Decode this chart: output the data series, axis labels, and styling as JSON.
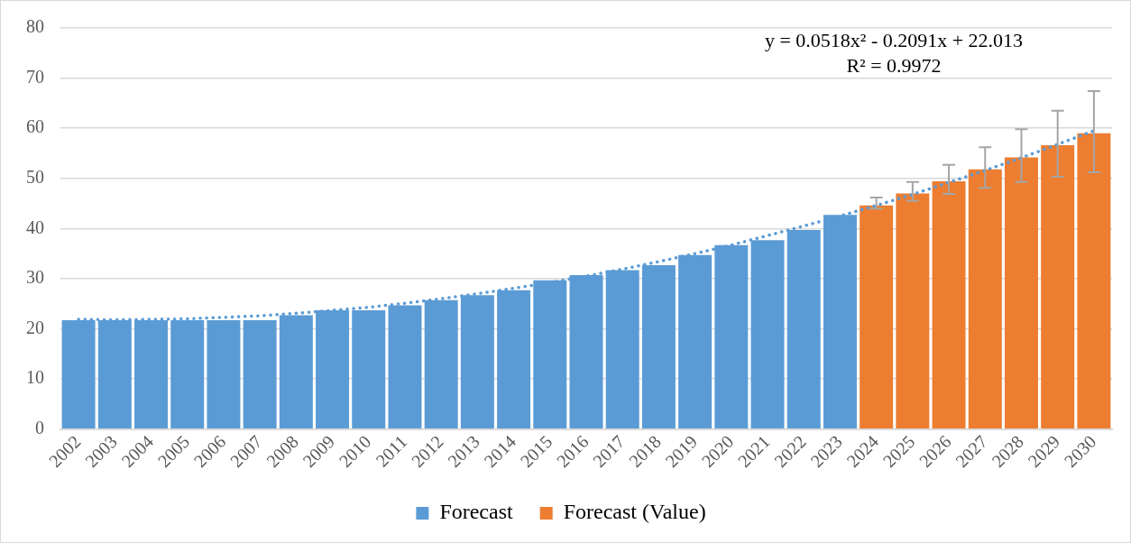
{
  "chart_data": {
    "type": "bar",
    "categories": [
      "2002",
      "2003",
      "2004",
      "2005",
      "2006",
      "2007",
      "2008",
      "2009",
      "2010",
      "2011",
      "2012",
      "2013",
      "2014",
      "2015",
      "2016",
      "2017",
      "2018",
      "2019",
      "2020",
      "2021",
      "2022",
      "2023",
      "2024",
      "2025",
      "2026",
      "2027",
      "2028",
      "2029",
      "2030"
    ],
    "series": [
      {
        "name": "Forecast",
        "color": "#5b9bd5",
        "values": [
          21.7,
          21.7,
          21.7,
          21.7,
          21.7,
          21.7,
          22.7,
          23.7,
          23.7,
          24.7,
          25.7,
          26.7,
          27.7,
          29.7,
          30.7,
          31.7,
          32.7,
          34.7,
          36.7,
          37.7,
          39.7,
          42.7,
          null,
          null,
          null,
          null,
          null,
          null,
          null
        ]
      },
      {
        "name": "Forecast (Value)",
        "color": "#ed7d31",
        "values": [
          null,
          null,
          null,
          null,
          null,
          null,
          null,
          null,
          null,
          null,
          null,
          null,
          null,
          null,
          null,
          null,
          null,
          null,
          null,
          null,
          null,
          null,
          44.6,
          47.0,
          49.4,
          51.8,
          54.2,
          56.6,
          59.0
        ],
        "errors": [
          null,
          null,
          null,
          null,
          null,
          null,
          null,
          null,
          null,
          null,
          null,
          null,
          null,
          null,
          null,
          null,
          null,
          null,
          null,
          null,
          null,
          null,
          [
            44.0,
            46.2
          ],
          [
            45.5,
            49.3
          ],
          [
            46.9,
            52.7
          ],
          [
            48.1,
            56.2
          ],
          [
            49.3,
            59.8
          ],
          [
            50.3,
            63.5
          ],
          [
            51.2,
            67.4
          ]
        ]
      },
      {
        "type": "line",
        "color": "#5b9bd5",
        "line_style": "dotted",
        "marker": "none",
        "values": [
          21.9,
          21.8,
          21.9,
          22.0,
          22.3,
          22.6,
          23.1,
          23.7,
          24.3,
          25.1,
          26.0,
          27.0,
          28.1,
          29.2,
          30.5,
          31.9,
          33.4,
          35.0,
          36.7,
          38.6,
          40.5,
          42.5,
          44.6,
          46.8,
          49.2,
          51.6,
          54.1,
          56.8,
          59.5
        ]
      }
    ],
    "annotations": [
      "y = 0.0518x² - 0.2091x + 22.013",
      "R² = 0.9972"
    ],
    "ylim": [
      0,
      80
    ],
    "yticks": [
      0,
      10,
      20,
      30,
      40,
      50,
      60,
      70,
      80
    ],
    "grid": "y",
    "legend": "bottom"
  }
}
